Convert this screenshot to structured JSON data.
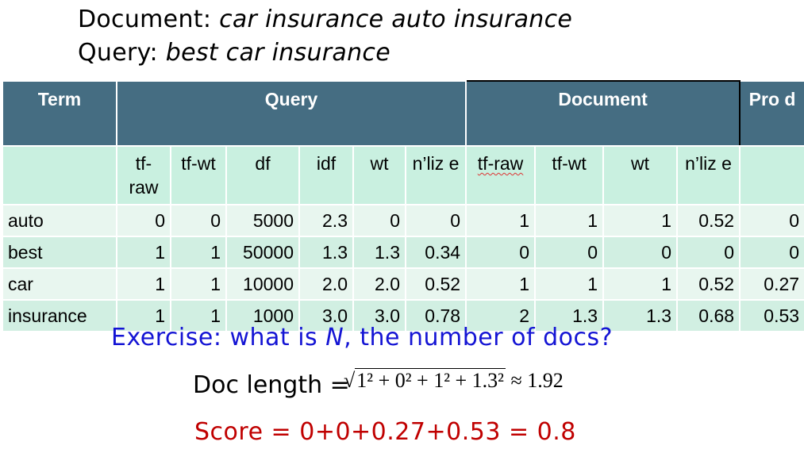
{
  "header": {
    "document_label": "Document: ",
    "document_value": "car insurance auto insurance",
    "query_label": "Query: ",
    "query_value": "best car insurance"
  },
  "table": {
    "groups": {
      "term": "Term",
      "query": "Query",
      "document": "Document",
      "prod": "Pro d"
    },
    "columns": [
      "",
      "tf- raw",
      "tf-wt",
      "df",
      "idf",
      "wt",
      "n’liz e",
      "tf-raw",
      "tf-wt",
      "wt",
      "n’liz e",
      ""
    ],
    "rows": [
      [
        "auto",
        "0",
        "0",
        "5000",
        "2.3",
        "0",
        "0",
        "1",
        "1",
        "1",
        "0.52",
        "0"
      ],
      [
        "best",
        "1",
        "1",
        "50000",
        "1.3",
        "1.3",
        "0.34",
        "0",
        "0",
        "0",
        "0",
        "0"
      ],
      [
        "car",
        "1",
        "1",
        "10000",
        "2.0",
        "2.0",
        "0.52",
        "1",
        "1",
        "1",
        "0.52",
        "0.27"
      ],
      [
        "insurance",
        "1",
        "1",
        "1000",
        "3.0",
        "3.0",
        "0.78",
        "2",
        "1.3",
        "1.3",
        "0.68",
        "0.53"
      ]
    ]
  },
  "exercise": {
    "before": "Exercise: what is ",
    "var": "N",
    "after": ", the number of docs?"
  },
  "doc_length": {
    "label": "Doc length =",
    "formula_prefix": "√",
    "formula": "1² + 0² + 1² + 1.3²",
    "approx": "≈ 1.92"
  },
  "score": "Score = 0+0+0.27+0.53 = 0.8"
}
